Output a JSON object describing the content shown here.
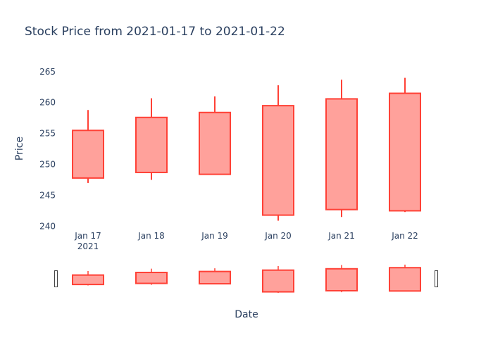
{
  "chart_data": {
    "type": "candlestick",
    "title": "Stock Price from 2021-01-17 to 2021-01-22",
    "xlabel": "Date",
    "ylabel": "Price",
    "ylim": [
      240,
      266
    ],
    "y_ticks": [
      240,
      245,
      250,
      255,
      260,
      265
    ],
    "x_tick_labels": [
      "Jan 17",
      "Jan 18",
      "Jan 19",
      "Jan 20",
      "Jan 21",
      "Jan 22"
    ],
    "x_year_label": "2021",
    "colors": {
      "decreasing_line": "#ff4136",
      "decreasing_fill": "#ffa19b"
    },
    "rangeslider": true,
    "candles": [
      {
        "date": "2021-01-17",
        "open": 255.5,
        "high": 258.8,
        "low": 247.0,
        "close": 247.8
      },
      {
        "date": "2021-01-18",
        "open": 257.6,
        "high": 260.7,
        "low": 247.5,
        "close": 248.7
      },
      {
        "date": "2021-01-19",
        "open": 258.4,
        "high": 261.0,
        "low": 248.4,
        "close": 248.4
      },
      {
        "date": "2021-01-20",
        "open": 259.5,
        "high": 262.8,
        "low": 240.9,
        "close": 241.8
      },
      {
        "date": "2021-01-21",
        "open": 260.6,
        "high": 263.7,
        "low": 241.5,
        "close": 242.7
      },
      {
        "date": "2021-01-22",
        "open": 261.5,
        "high": 264.0,
        "low": 242.3,
        "close": 242.5
      }
    ]
  }
}
